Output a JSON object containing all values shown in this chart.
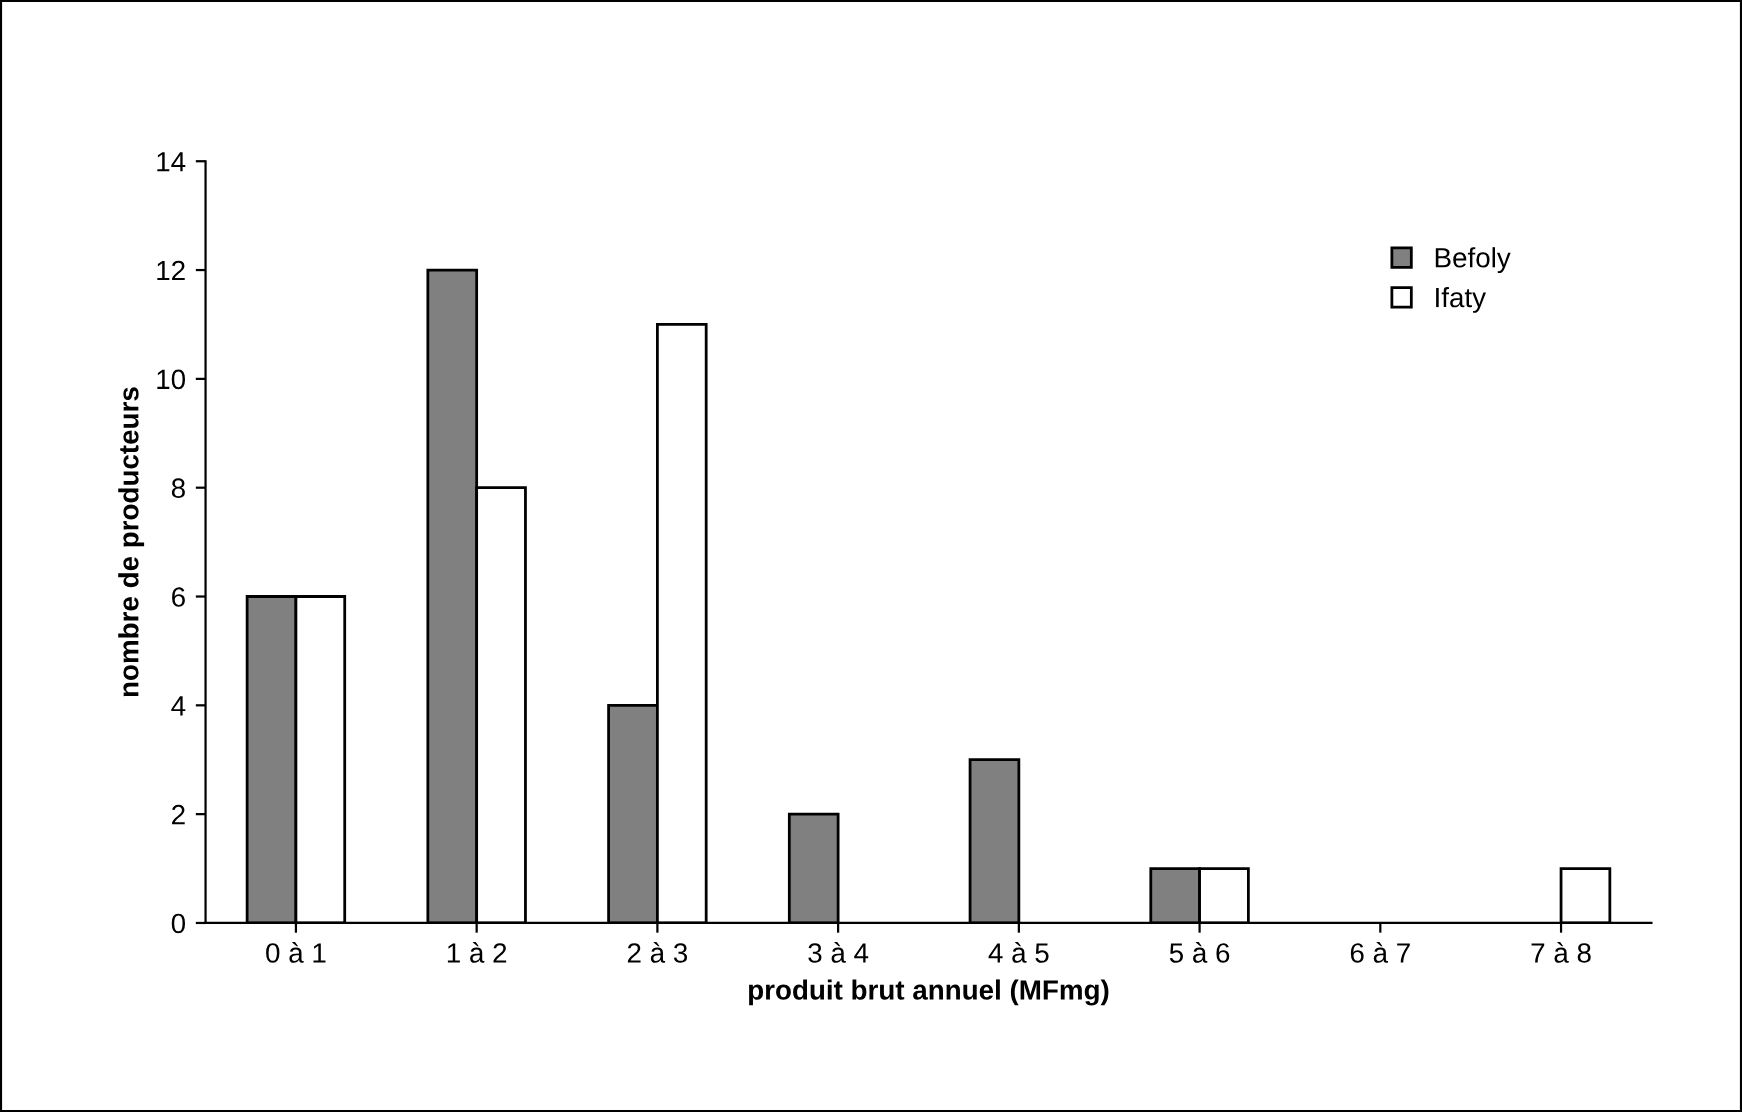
{
  "chart_data": {
    "type": "bar",
    "xlabel": "produit brut annuel (MFmg)",
    "ylabel": "nombre de producteurs",
    "categories": [
      "0 à 1",
      "1 à 2",
      "2 à 3",
      "3 à 4",
      "4 à 5",
      "5 à 6",
      "6 à 7",
      "7 à 8"
    ],
    "series": [
      {
        "name": "Befoly",
        "color": "#808080",
        "values": [
          6,
          12,
          4,
          2,
          3,
          1,
          0,
          0
        ]
      },
      {
        "name": "Ifaty",
        "color": "#ffffff",
        "values": [
          6,
          8,
          11,
          0,
          0,
          1,
          0,
          1
        ]
      }
    ],
    "ylim": [
      0,
      14
    ],
    "yticks": [
      0,
      2,
      4,
      6,
      8,
      10,
      12,
      14
    ],
    "grid": false,
    "legend": "top right"
  }
}
